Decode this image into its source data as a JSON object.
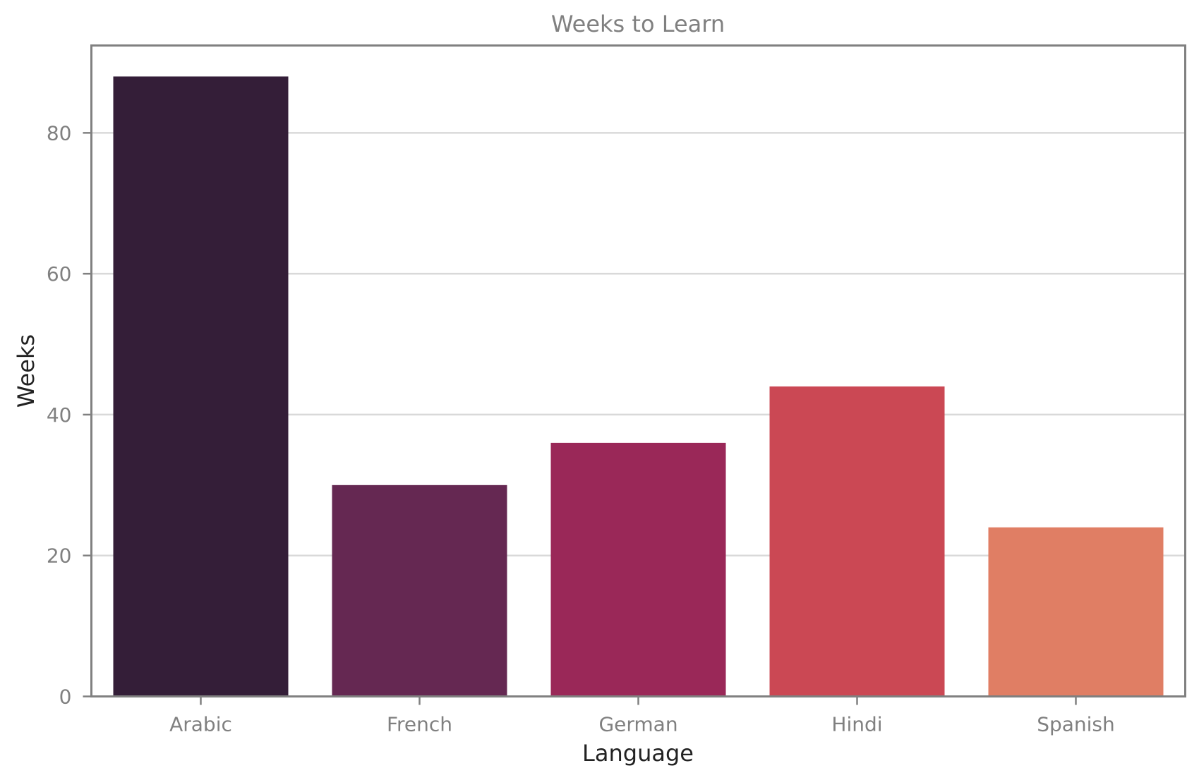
{
  "chart_data": {
    "type": "bar",
    "title": "Weeks to Learn",
    "xlabel": "Language",
    "ylabel": "Weeks",
    "categories": [
      "Arabic",
      "French",
      "German",
      "Hindi",
      "Spanish"
    ],
    "values": [
      88,
      30,
      36,
      44,
      24
    ],
    "colors": [
      "#341e38",
      "#652852",
      "#9a2858",
      "#cb4854",
      "#e07e64"
    ],
    "ylim": [
      0,
      92.4
    ],
    "yticks": [
      0,
      20,
      40,
      60,
      80
    ],
    "grid": "y",
    "legend": "none"
  }
}
